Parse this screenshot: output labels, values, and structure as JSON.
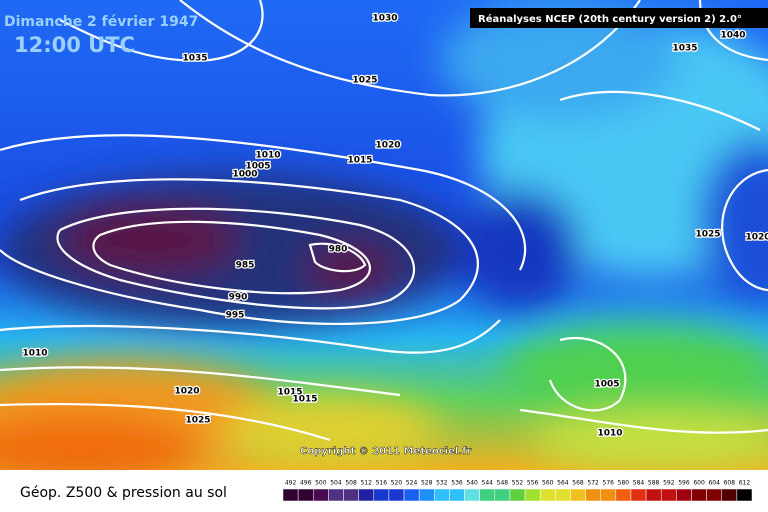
{
  "header": {
    "date": "Dimanche 2 février 1947",
    "time": "12:00 UTC",
    "source": "Réanalyses NCEP (20th century version 2) 2.0°"
  },
  "isobar_labels": [
    "1030",
    "1035",
    "1035",
    "1040",
    "1025",
    "1020",
    "1015",
    "1010",
    "1005",
    "1000",
    "980",
    "985",
    "990",
    "995",
    "1010",
    "1020",
    "1015",
    "1015",
    "1025",
    "1025",
    "1020",
    "1005",
    "1010"
  ],
  "copyright": "Copyright © 2011 Meteociel.fr",
  "footer": {
    "title": "Géop. Z500 & pression au sol"
  },
  "scale": {
    "ticks": [
      492,
      496,
      500,
      504,
      508,
      512,
      516,
      520,
      524,
      528,
      532,
      536,
      540,
      544,
      548,
      552,
      556,
      560,
      564,
      568,
      572,
      576,
      580,
      584,
      588,
      592,
      596,
      600,
      604,
      608,
      612
    ]
  }
}
